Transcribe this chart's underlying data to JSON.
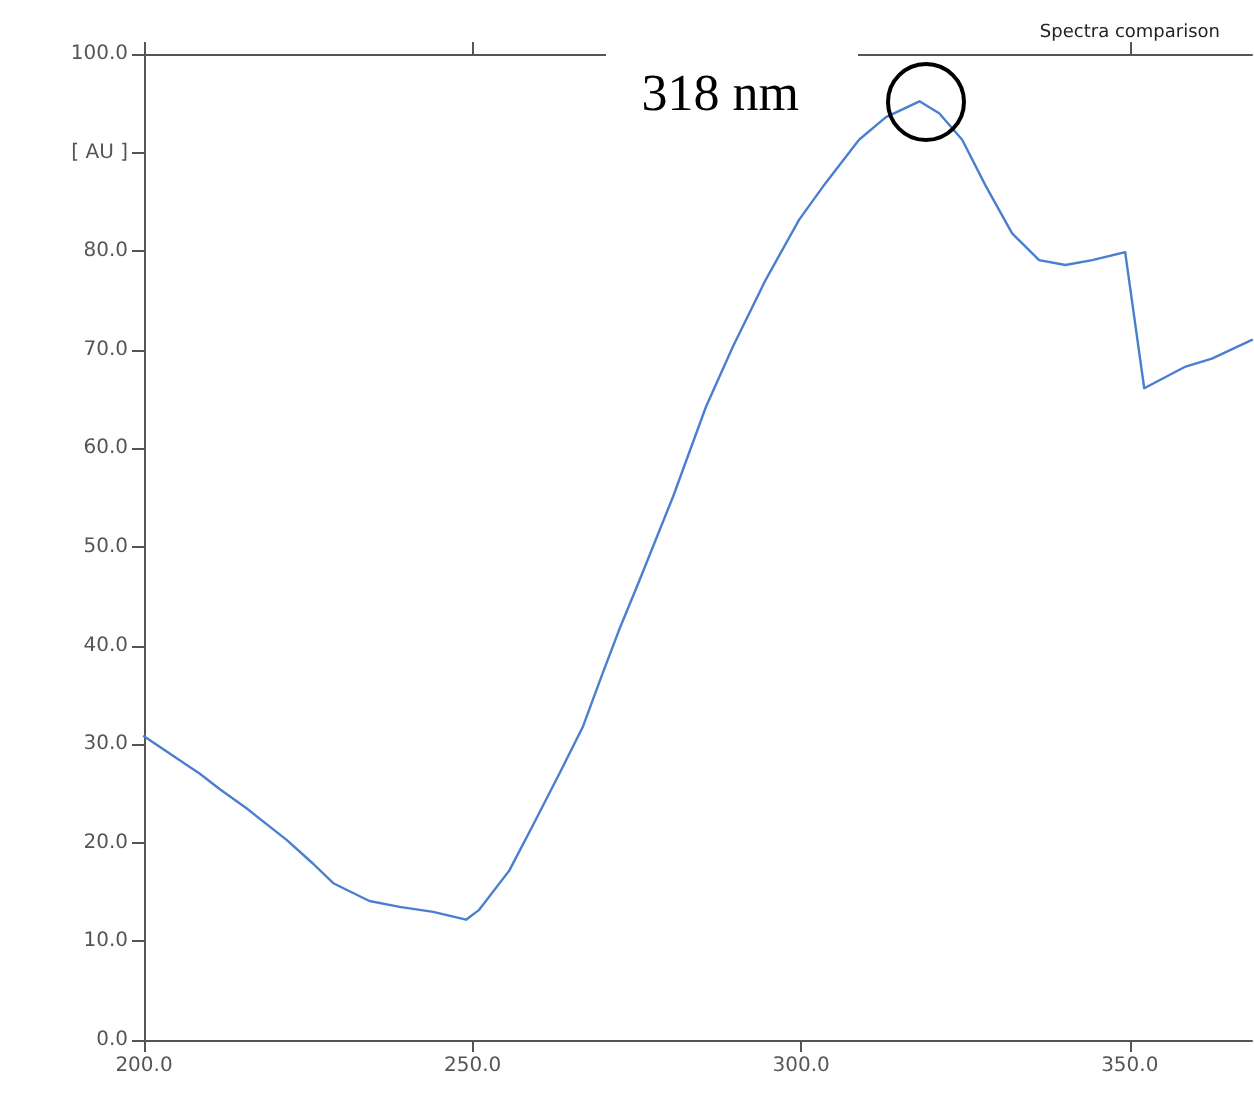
{
  "chart_data": {
    "type": "line",
    "title": "Spectra comparison",
    "annotations": [
      {
        "text": "318 nm",
        "x": 318,
        "y": 95.2
      }
    ],
    "x": [
      200,
      208.5,
      211.6,
      215.6,
      221.7,
      225.7,
      228.8,
      234.3,
      238.9,
      244,
      249,
      251,
      255.6,
      259.2,
      263.2,
      266.8,
      269.8,
      272.3,
      275.2,
      280.5,
      285.5,
      289.6,
      294.6,
      299.7,
      303.7,
      308.8,
      312.9,
      318,
      321,
      324.5,
      328.1,
      332.1,
      336.2,
      340.2,
      344.3,
      349.3,
      352.2,
      358.5,
      362.5,
      368.6
    ],
    "series": [
      {
        "color": "#4a7fcf",
        "values": [
          30.8,
          27.0,
          25.4,
          23.5,
          20.3,
          17.9,
          15.9,
          14.1,
          13.5,
          13.0,
          12.2,
          13.2,
          17.2,
          21.8,
          27.0,
          31.8,
          37.2,
          41.6,
          46.3,
          55.1,
          64.2,
          70.3,
          77.1,
          83.2,
          86.9,
          91.3,
          93.6,
          95.2,
          94.0,
          91.3,
          86.6,
          81.8,
          79.1,
          78.6,
          79.1,
          79.9,
          66.1,
          68.3,
          69.1,
          71.0
        ]
      }
    ],
    "xlim": [
      200,
      368.6
    ],
    "xticks": [
      {
        "value": 200,
        "label": "200.0"
      },
      {
        "value": 250,
        "label": "250.0"
      },
      {
        "value": 300,
        "label": "300.0"
      },
      {
        "value": 350,
        "label": "350.0"
      }
    ],
    "ylim": [
      0,
      100
    ],
    "yticks": [
      {
        "value": 0,
        "label": "0.0"
      },
      {
        "value": 10,
        "label": "10.0"
      },
      {
        "value": 20,
        "label": "20.0"
      },
      {
        "value": 30,
        "label": "30.0"
      },
      {
        "value": 40,
        "label": "40.0"
      },
      {
        "value": 50,
        "label": "50.0"
      },
      {
        "value": 60,
        "label": "60.0"
      },
      {
        "value": 70,
        "label": "70.0"
      },
      {
        "value": 80,
        "label": "80.0"
      },
      {
        "value": 90,
        "label": "[ AU ]"
      },
      {
        "value": 100,
        "label": "100.0"
      }
    ],
    "grid": false,
    "marker": "none",
    "line_style": "solid"
  }
}
